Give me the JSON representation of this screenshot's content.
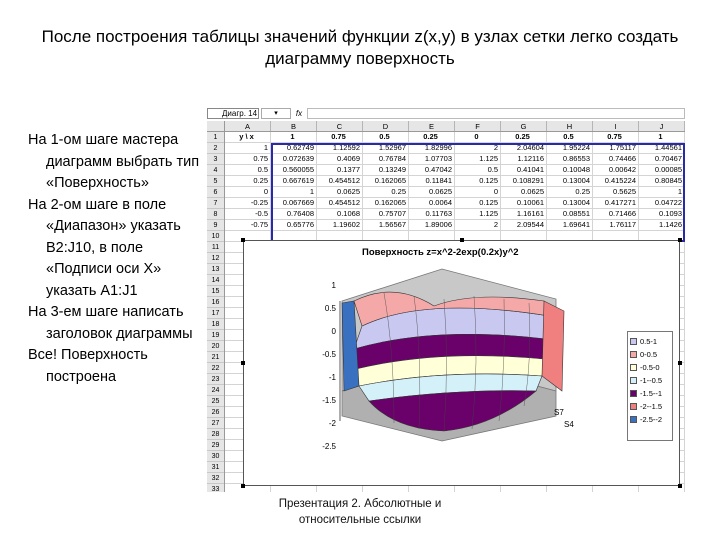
{
  "slide": {
    "title": "После построения таблицы значений функции z(x,y) в узлах сетки легко создать диаграмму поверхность",
    "steps": [
      "На 1-ом шаге мастера диаграмм выбрать тип «Поверхность»",
      "На 2-ом шаге в поле «Диапазон» указать B2:J10, в поле «Подписи оси X» указать A1:J1",
      "На 3-ем шаге написать заголовок диаграммы",
      "Все! Поверхность построена"
    ],
    "caption": "Презентация 2. Абсолютные и относительные ссылки"
  },
  "spreadsheet": {
    "name_box": "Диагр. 14",
    "fx": "fx",
    "columns": [
      "A",
      "B",
      "C",
      "D",
      "E",
      "F",
      "G",
      "H",
      "I",
      "J"
    ],
    "rows": [
      "1",
      "2",
      "3",
      "4",
      "5",
      "6",
      "7",
      "8",
      "9",
      "10",
      "11",
      "12",
      "13",
      "14",
      "15",
      "16",
      "17",
      "18",
      "19",
      "20",
      "21",
      "22",
      "23",
      "24",
      "25",
      "26",
      "27",
      "28",
      "29",
      "30",
      "31",
      "32",
      "33"
    ],
    "cells": [
      [
        "y \\ x",
        "1",
        "0.75",
        "0.5",
        "0.25",
        "0",
        "0.25",
        "0.5",
        "0.75",
        "1"
      ],
      [
        "1",
        "0.62749",
        "1.12592",
        "1.52967",
        "1.82996",
        "2",
        "2.04604",
        "1.95224",
        "1.75117",
        "1.44561"
      ],
      [
        "0.75",
        "0.072639",
        "0.4069",
        "0.76784",
        "1.07703",
        "1.125",
        "1.12116",
        "0.86553",
        "0.74466",
        "0.70467"
      ],
      [
        "0.5",
        "0.560055",
        "0.1377",
        "0.13249",
        "0.47042",
        "0.5",
        "0.41041",
        "0.10048",
        "0.00642",
        "0.00085"
      ],
      [
        "0.25",
        "0.667619",
        "0.454512",
        "0.162065",
        "0.11841",
        "0.125",
        "0.108291",
        "0.13004",
        "0.415224",
        "0.80845"
      ],
      [
        "0",
        "1",
        "0.0625",
        "0.25",
        "0.0625",
        "0",
        "0.0625",
        "0.25",
        "0.5625",
        "1"
      ],
      [
        "-0.25",
        "0.067669",
        "0.454512",
        "0.162065",
        "0.0064",
        "0.125",
        "0.10061",
        "0.13004",
        "0.417271",
        "0.04722"
      ],
      [
        "-0.5",
        "0.76408",
        "0.1068",
        "0.75707",
        "0.11763",
        "1.125",
        "1.16161",
        "0.08551",
        "0.71466",
        "0.1093"
      ],
      [
        "-0.75",
        "0.65776",
        "1.19602",
        "1.56567",
        "1.89006",
        "2",
        "2.09544",
        "1.69641",
        "1.76117",
        "1.1426"
      ]
    ]
  },
  "chart": {
    "title": "Поверхность z=x^2-2exp(0.2x)y^2",
    "z_ticks": [
      "1",
      "0.5",
      "0",
      "-0.5",
      "-1",
      "-1.5",
      "-2",
      "-2.5"
    ],
    "x_ticks": [
      "S7",
      "S4"
    ],
    "legend": [
      {
        "label": "0.5-1",
        "color": "#c8c8f0"
      },
      {
        "label": "0-0.5",
        "color": "#f4a8a8"
      },
      {
        "label": "-0.5-0",
        "color": "#ffffd8"
      },
      {
        "label": "-1--0.5",
        "color": "#d4f0f8"
      },
      {
        "label": "-1.5--1",
        "color": "#6a006a"
      },
      {
        "label": "-2--1.5",
        "color": "#f08080"
      },
      {
        "label": "-2.5--2",
        "color": "#3a70c0"
      }
    ]
  }
}
